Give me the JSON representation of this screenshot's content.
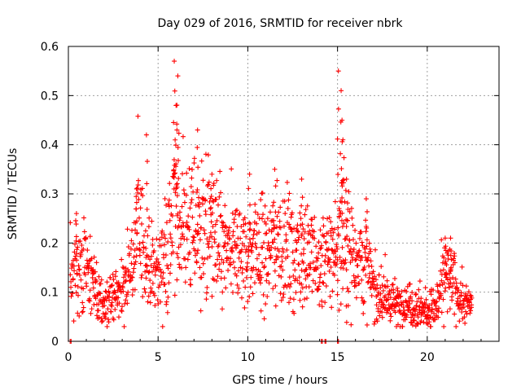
{
  "chart_data": {
    "type": "scatter",
    "title": "Day 029 of 2016, SRMTID for receiver nbrk",
    "xlabel": "GPS time / hours",
    "ylabel": "SRMTID / TECUs",
    "xlim": [
      0,
      24
    ],
    "ylim": [
      0,
      0.6
    ],
    "xticks": [
      0,
      5,
      10,
      15,
      20
    ],
    "yticks": [
      0,
      0.1,
      0.2,
      0.3,
      0.4,
      0.5,
      0.6
    ],
    "xtick_labels": [
      "0",
      "5",
      "10",
      "15",
      "20"
    ],
    "ytick_labels": [
      "0",
      "0.1",
      "0.2",
      "0.3",
      "0.4",
      "0.5",
      "0.6"
    ],
    "grid": true,
    "legend": "none",
    "marker": "plus",
    "color": "#ff0000",
    "series_trend": {
      "name": "SRMTID",
      "x": [
        0.1,
        0.4,
        0.8,
        1.2,
        1.6,
        2.0,
        2.5,
        3.0,
        3.5,
        4.0,
        4.5,
        5.0,
        5.5,
        6.0,
        6.5,
        7.0,
        7.5,
        8.0,
        8.5,
        9.0,
        9.5,
        10.0,
        10.5,
        11.0,
        11.5,
        12.0,
        12.5,
        13.0,
        13.5,
        14.0,
        14.5,
        15.0,
        15.5,
        16.0,
        16.5,
        17.0,
        17.5,
        18.0,
        18.5,
        19.0,
        19.5,
        20.0,
        20.5,
        21.0,
        21.5,
        22.0,
        22.5
      ],
      "y": [
        0.12,
        0.15,
        0.14,
        0.13,
        0.09,
        0.07,
        0.09,
        0.11,
        0.16,
        0.22,
        0.15,
        0.14,
        0.19,
        0.26,
        0.22,
        0.24,
        0.23,
        0.22,
        0.19,
        0.17,
        0.18,
        0.17,
        0.19,
        0.18,
        0.2,
        0.2,
        0.17,
        0.18,
        0.17,
        0.15,
        0.17,
        0.19,
        0.2,
        0.18,
        0.16,
        0.11,
        0.09,
        0.08,
        0.07,
        0.08,
        0.07,
        0.06,
        0.07,
        0.13,
        0.11,
        0.08,
        0.07
      ]
    },
    "peaks": [
      {
        "x": 0.45,
        "y": 0.26
      },
      {
        "x": 3.8,
        "y": 0.31
      },
      {
        "x": 4.35,
        "y": 0.42
      },
      {
        "x": 5.9,
        "y": 0.57
      },
      {
        "x": 6.1,
        "y": 0.54
      },
      {
        "x": 6.0,
        "y": 0.48
      },
      {
        "x": 6.05,
        "y": 0.43
      },
      {
        "x": 7.2,
        "y": 0.43
      },
      {
        "x": 8.0,
        "y": 0.34
      },
      {
        "x": 10.1,
        "y": 0.34
      },
      {
        "x": 11.5,
        "y": 0.35
      },
      {
        "x": 13.0,
        "y": 0.33
      },
      {
        "x": 15.05,
        "y": 0.55
      },
      {
        "x": 15.2,
        "y": 0.51
      },
      {
        "x": 15.25,
        "y": 0.45
      },
      {
        "x": 15.3,
        "y": 0.41
      },
      {
        "x": 15.5,
        "y": 0.33
      },
      {
        "x": 16.6,
        "y": 0.29
      },
      {
        "x": 21.0,
        "y": 0.21
      },
      {
        "x": 21.3,
        "y": 0.21
      }
    ],
    "zero_points": [
      {
        "x": 0.1,
        "y": 0
      },
      {
        "x": 14.1,
        "y": 0
      },
      {
        "x": 14.3,
        "y": 0
      },
      {
        "x": 15.0,
        "y": 0
      }
    ]
  }
}
